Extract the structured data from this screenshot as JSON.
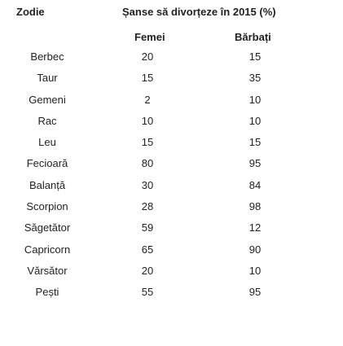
{
  "headers": {
    "zodie": "Zodie",
    "title": "Șanse să divorțeze în 2015 (%)",
    "femei": "Femei",
    "barbati": "Bărbați"
  },
  "rows": [
    {
      "sign": "Berbec",
      "femei": "20",
      "barbati": "15"
    },
    {
      "sign": "Taur",
      "femei": "15",
      "barbati": "35"
    },
    {
      "sign": "Gemeni",
      "femei": "2",
      "barbati": "10"
    },
    {
      "sign": "Rac",
      "femei": "10",
      "barbati": "10"
    },
    {
      "sign": "Leu",
      "femei": "15",
      "barbati": "15"
    },
    {
      "sign": "Fecioară",
      "femei": "80",
      "barbati": "95"
    },
    {
      "sign": "Balanță",
      "femei": "30",
      "barbati": "84"
    },
    {
      "sign": "Scorpion",
      "femei": "28",
      "barbati": "98"
    },
    {
      "sign": "Săgetător",
      "femei": "59",
      "barbati": "12"
    },
    {
      "sign": "Capricorn",
      "femei": "65",
      "barbati": "90"
    },
    {
      "sign": "Vărsător",
      "femei": "20",
      "barbati": "10"
    },
    {
      "sign": "Pești",
      "femei": "55",
      "barbati": "95"
    }
  ]
}
